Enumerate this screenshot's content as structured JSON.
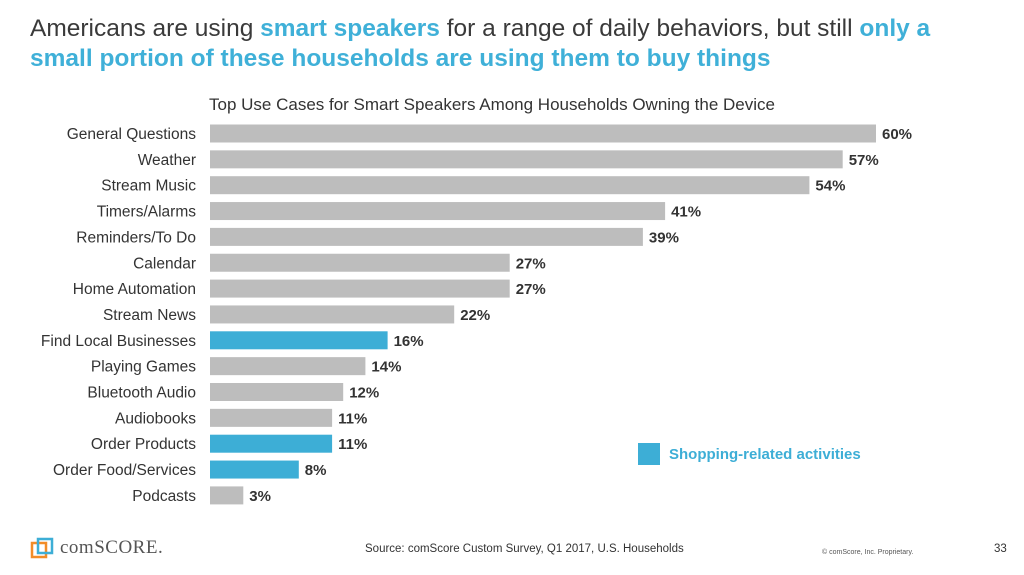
{
  "headline": {
    "part1": "Americans are using ",
    "highlight1": "smart speakers",
    "part2": " for a range of daily behaviors, but still ",
    "highlight2": "only a small portion of these households are using them to buy things"
  },
  "colors": {
    "gray_bar": "#bdbdbd",
    "shopping_bar": "#3daed6",
    "headline_accent": "#3fb0d8"
  },
  "chart_data": {
    "type": "bar",
    "orientation": "horizontal",
    "title": "Top Use Cases for Smart Speakers Among Households Owning the Device",
    "categories": [
      "General Questions",
      "Weather",
      "Stream Music",
      "Timers/Alarms",
      "Reminders/To Do",
      "Calendar",
      "Home Automation",
      "Stream News",
      "Find Local Businesses",
      "Playing Games",
      "Bluetooth Audio",
      "Audiobooks",
      "Order Products",
      "Order Food/Services",
      "Podcasts"
    ],
    "values": [
      60,
      57,
      54,
      41,
      39,
      27,
      27,
      22,
      16,
      14,
      12,
      11,
      11,
      8,
      3
    ],
    "value_labels": [
      "60%",
      "57%",
      "54%",
      "41%",
      "39%",
      "27%",
      "27%",
      "22%",
      "16%",
      "14%",
      "12%",
      "11%",
      "11%",
      "8%",
      "3%"
    ],
    "shopping_related": [
      false,
      false,
      false,
      false,
      false,
      false,
      false,
      false,
      true,
      false,
      false,
      false,
      true,
      true,
      false
    ],
    "xlim": [
      0,
      60
    ],
    "grid": false,
    "legend": {
      "label": "Shopping-related activities",
      "placement": "bottom-right"
    }
  },
  "footer": {
    "source": "Source: comScore Custom Survey, Q1 2017, U.S. Households",
    "copyright": "© comScore, Inc. Proprietary.",
    "page_number": "33",
    "logo_text": "comSCORE."
  }
}
